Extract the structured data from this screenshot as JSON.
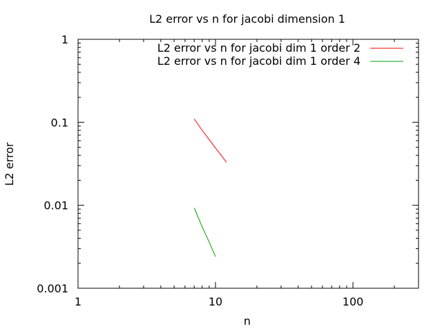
{
  "chart_data": {
    "type": "line",
    "title": "L2 error vs n for jacobi dimension 1",
    "xlabel": "n",
    "ylabel": "L2 error",
    "xscale": "log",
    "yscale": "log",
    "xlim": [
      1,
      300
    ],
    "ylim": [
      0.001,
      1
    ],
    "xticks": [
      {
        "value": 1,
        "label": "1"
      },
      {
        "value": 10,
        "label": "10"
      },
      {
        "value": 100,
        "label": "100"
      }
    ],
    "yticks": [
      {
        "value": 1,
        "label": "1"
      },
      {
        "value": 0.1,
        "label": "0.1"
      },
      {
        "value": 0.01,
        "label": "0.01"
      },
      {
        "value": 0.001,
        "label": "0.001"
      }
    ],
    "grid": false,
    "legend_position": "top-right",
    "series": [
      {
        "name": "L2 error vs n for jacobi dim 1 order 2",
        "color": "#ff0000",
        "x": [
          7,
          8,
          9,
          10,
          11,
          12
        ],
        "y": [
          0.11,
          0.08,
          0.062,
          0.049,
          0.04,
          0.033
        ]
      },
      {
        "name": "L2 error vs n for jacobi dim 1 order 4",
        "color": "#00a000",
        "x": [
          7,
          8,
          9,
          10
        ],
        "y": [
          0.0093,
          0.0055,
          0.0036,
          0.0024
        ]
      }
    ]
  }
}
